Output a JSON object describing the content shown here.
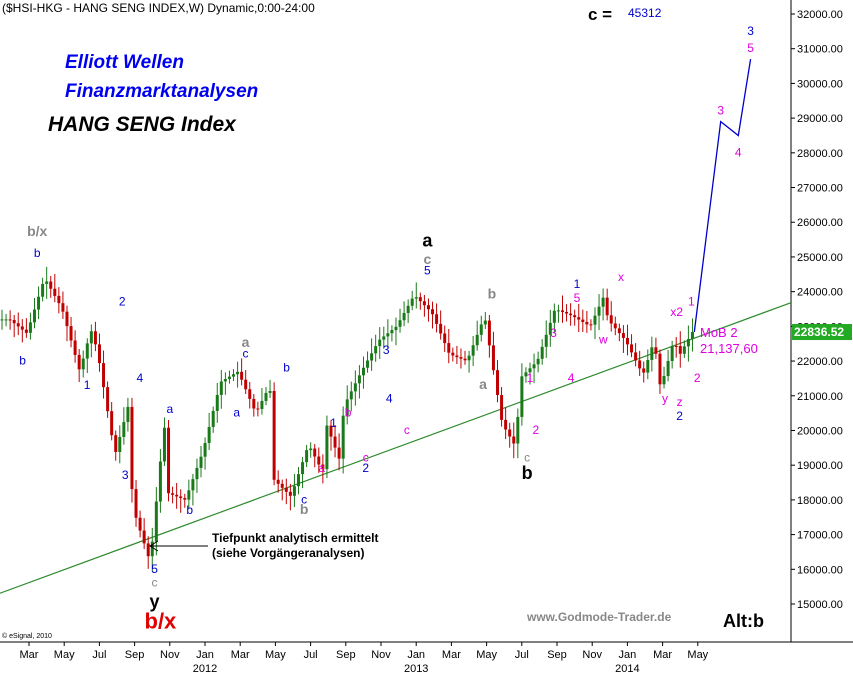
{
  "header": {
    "symbol_line": "($HSI-HKG - HANG SENG INDEX,W) Dynamic,0:00-24:00",
    "c_label": "c =",
    "c_value": "45312"
  },
  "titles": {
    "line1": "Elliott Wellen",
    "line2": "Finanzmarktanalysen",
    "line3": "HANG SENG Index"
  },
  "annotations": {
    "tiefpunkt_line1": "Tiefpunkt analytisch ermittelt",
    "tiefpunkt_line2": "(siehe Vorgängeranalysen)",
    "mob_label": "MoB 2",
    "mob_value": "21,137,60",
    "website": "www.Godmode-Trader.de",
    "alt": "Alt:b",
    "esignal": "© eSignal, 2010",
    "last_price": "22836.52"
  },
  "colors": {
    "up_candle": "#1a7a1a",
    "down_candle": "#c00000",
    "trendline": "#2e8b2e",
    "projection": "#0000cc",
    "blue": "#0000cc",
    "magenta": "#e000e0",
    "gray": "#888888",
    "red": "#e00000",
    "price_box": "#22aa22"
  },
  "chart_data": {
    "type": "candlestick",
    "ylim": [
      14400,
      32400
    ],
    "y_ticks": [
      15000,
      16000,
      17000,
      18000,
      19000,
      20000,
      21000,
      22000,
      23000,
      24000,
      25000,
      26000,
      27000,
      28000,
      29000,
      30000,
      31000,
      32000
    ],
    "y_tick_labels": [
      "15000.00",
      "16000.00",
      "17000.00",
      "18000.00",
      "19000.00",
      "20000.00",
      "21000.00",
      "22000.00",
      "23000.00",
      "24000.00",
      "25000.00",
      "26000.00",
      "27000.00",
      "28000.00",
      "29000.00",
      "30000.00",
      "31000.00",
      "32000.00"
    ],
    "x_ticks": [
      {
        "month": "2011-03",
        "label": "Mar",
        "year": ""
      },
      {
        "month": "2011-05",
        "label": "May",
        "year": ""
      },
      {
        "month": "2011-07",
        "label": "Jul",
        "year": ""
      },
      {
        "month": "2011-09",
        "label": "Sep",
        "year": ""
      },
      {
        "month": "2011-11",
        "label": "Nov",
        "year": ""
      },
      {
        "month": "2012-01",
        "label": "Jan",
        "year": "2012"
      },
      {
        "month": "2012-03",
        "label": "Mar",
        "year": ""
      },
      {
        "month": "2012-05",
        "label": "May",
        "year": ""
      },
      {
        "month": "2012-07",
        "label": "Jul",
        "year": ""
      },
      {
        "month": "2012-09",
        "label": "Sep",
        "year": ""
      },
      {
        "month": "2012-11",
        "label": "Nov",
        "year": ""
      },
      {
        "month": "2013-01",
        "label": "Jan",
        "year": "2013"
      },
      {
        "month": "2013-03",
        "label": "Mar",
        "year": ""
      },
      {
        "month": "2013-05",
        "label": "May",
        "year": ""
      },
      {
        "month": "2013-07",
        "label": "Jul",
        "year": ""
      },
      {
        "month": "2013-09",
        "label": "Sep",
        "year": ""
      },
      {
        "month": "2013-11",
        "label": "Nov",
        "year": ""
      },
      {
        "month": "2014-01",
        "label": "Jan",
        "year": "2014"
      },
      {
        "month": "2014-03",
        "label": "Mar",
        "year": ""
      },
      {
        "month": "2014-05",
        "label": "May",
        "year": ""
      }
    ],
    "swing_path": [
      [
        "2011-02",
        23200
      ],
      [
        "2011-03",
        22800
      ],
      [
        "2011-04",
        24400
      ],
      [
        "2011-05",
        23500
      ],
      [
        "2011-06",
        21700
      ],
      [
        "2011-06-20",
        22900
      ],
      [
        "2011-07",
        22300
      ],
      [
        "2011-08",
        19300
      ],
      [
        "2011-08-25",
        20800
      ],
      [
        "2011-09",
        17800
      ],
      [
        "2011-10-01",
        16200
      ],
      [
        "2011-10-25",
        20200
      ],
      [
        "2011-11",
        18200
      ],
      [
        "2011-12",
        18000
      ],
      [
        "2012-01",
        19400
      ],
      [
        "2012-02",
        21400
      ],
      [
        "2012-03",
        21700
      ],
      [
        "2012-04",
        20500
      ],
      [
        "2012-04-25",
        21300
      ],
      [
        "2012-05",
        18600
      ],
      [
        "2012-06",
        18100
      ],
      [
        "2012-07",
        19600
      ],
      [
        "2012-07-25",
        18800
      ],
      [
        "2012-08",
        20200
      ],
      [
        "2012-08-25",
        19100
      ],
      [
        "2012-09",
        20700
      ],
      [
        "2012-10",
        21700
      ],
      [
        "2012-11",
        22600
      ],
      [
        "2012-12",
        23000
      ],
      [
        "2013-01",
        23900
      ],
      [
        "2013-02",
        23400
      ],
      [
        "2013-03",
        22200
      ],
      [
        "2013-04",
        22000
      ],
      [
        "2013-05",
        23300
      ],
      [
        "2013-06",
        20200
      ],
      [
        "2013-06-25",
        19500
      ],
      [
        "2013-07",
        21500
      ],
      [
        "2013-08",
        22000
      ],
      [
        "2013-09",
        23500
      ],
      [
        "2013-10",
        23300
      ],
      [
        "2013-11",
        23000
      ],
      [
        "2013-11-25",
        23900
      ],
      [
        "2013-12",
        23200
      ],
      [
        "2014-01",
        22600
      ],
      [
        "2014-02",
        21600
      ],
      [
        "2014-02-20",
        22600
      ],
      [
        "2014-03",
        21200
      ],
      [
        "2014-03-25",
        22700
      ],
      [
        "2014-04",
        22100
      ],
      [
        "2014-04-25",
        22836
      ]
    ],
    "trendline": [
      [
        "2010-09",
        14500
      ],
      [
        "2014-12",
        24000
      ]
    ],
    "projection": [
      [
        "2014-04-25",
        22836
      ],
      [
        "2014-06-10",
        28900
      ],
      [
        "2014-07-10",
        28500
      ],
      [
        "2014-08-01",
        30700
      ]
    ],
    "last_price": 22836.52
  },
  "wave_labels": [
    {
      "text": "b/x",
      "month": "2011-03-15",
      "price": 25600,
      "color": "gray",
      "size": 14
    },
    {
      "text": "b",
      "month": "2011-03-15",
      "price": 25000,
      "color": "blue",
      "size": 12
    },
    {
      "text": "b",
      "month": "2011-02-20",
      "price": 21900,
      "color": "blue",
      "size": 12
    },
    {
      "text": "2",
      "month": "2011-08-10",
      "price": 23600,
      "color": "blue",
      "size": 12
    },
    {
      "text": "1",
      "month": "2011-06-10",
      "price": 21200,
      "color": "blue",
      "size": 12
    },
    {
      "text": "4",
      "month": "2011-09-10",
      "price": 21400,
      "color": "blue",
      "size": 12
    },
    {
      "text": "3",
      "month": "2011-08-15",
      "price": 18600,
      "color": "blue",
      "size": 12
    },
    {
      "text": "a",
      "month": "2011-11-01",
      "price": 20500,
      "color": "blue",
      "size": 12
    },
    {
      "text": "b",
      "month": "2011-12-05",
      "price": 17600,
      "color": "blue",
      "size": 12
    },
    {
      "text": "5",
      "month": "2011-10-05",
      "price": 15900,
      "color": "blue",
      "size": 12
    },
    {
      "text": "c",
      "month": "2011-10-05",
      "price": 15500,
      "color": "gray",
      "size": 12
    },
    {
      "text": "y",
      "month": "2011-10-05",
      "price": 14900,
      "color": "black",
      "size": 18
    },
    {
      "text": "b/x",
      "month": "2011-10-15",
      "price": 14300,
      "color": "red",
      "size": 22
    },
    {
      "text": "a",
      "month": "2012-03-10",
      "price": 22400,
      "color": "gray",
      "size": 14
    },
    {
      "text": "c",
      "month": "2012-03-10",
      "price": 22100,
      "color": "blue",
      "size": 12
    },
    {
      "text": "a",
      "month": "2012-02-25",
      "price": 20400,
      "color": "blue",
      "size": 12
    },
    {
      "text": "b",
      "month": "2012-05-20",
      "price": 21700,
      "color": "blue",
      "size": 12
    },
    {
      "text": "c",
      "month": "2012-06-20",
      "price": 17900,
      "color": "blue",
      "size": 12
    },
    {
      "text": "b",
      "month": "2012-06-20",
      "price": 17600,
      "color": "gray",
      "size": 14
    },
    {
      "text": "a",
      "month": "2012-07-20",
      "price": 18800,
      "color": "magenta",
      "size": 12
    },
    {
      "text": "1",
      "month": "2012-08-10",
      "price": 20100,
      "color": "blue",
      "size": 12
    },
    {
      "text": "b",
      "month": "2012-09-05",
      "price": 20400,
      "color": "magenta",
      "size": 12
    },
    {
      "text": "c",
      "month": "2012-10-05",
      "price": 19100,
      "color": "magenta",
      "size": 12
    },
    {
      "text": "2",
      "month": "2012-10-05",
      "price": 18800,
      "color": "blue",
      "size": 12
    },
    {
      "text": "3",
      "month": "2012-11-10",
      "price": 22200,
      "color": "blue",
      "size": 12
    },
    {
      "text": "4",
      "month": "2012-11-15",
      "price": 20800,
      "color": "blue",
      "size": 12
    },
    {
      "text": "c",
      "month": "2012-12-15",
      "price": 19900,
      "color": "magenta",
      "size": 12
    },
    {
      "text": "a",
      "month": "2013-01-20",
      "price": 25300,
      "color": "black",
      "size": 18
    },
    {
      "text": "c",
      "month": "2013-01-20",
      "price": 24800,
      "color": "gray",
      "size": 14
    },
    {
      "text": "5",
      "month": "2013-01-20",
      "price": 24500,
      "color": "blue",
      "size": 12
    },
    {
      "text": "b",
      "month": "2013-05-10",
      "price": 23800,
      "color": "gray",
      "size": 14
    },
    {
      "text": "a",
      "month": "2013-04-25",
      "price": 21200,
      "color": "gray",
      "size": 14
    },
    {
      "text": "1",
      "month": "2013-07-15",
      "price": 21400,
      "color": "magenta",
      "size": 12
    },
    {
      "text": "2",
      "month": "2013-07-25",
      "price": 19900,
      "color": "magenta",
      "size": 12
    },
    {
      "text": "c",
      "month": "2013-07-10",
      "price": 19100,
      "color": "gray",
      "size": 12
    },
    {
      "text": "b",
      "month": "2013-07-10",
      "price": 18600,
      "color": "black",
      "size": 18
    },
    {
      "text": "3",
      "month": "2013-08-25",
      "price": 22700,
      "color": "magenta",
      "size": 12
    },
    {
      "text": "4",
      "month": "2013-09-25",
      "price": 21400,
      "color": "magenta",
      "size": 12
    },
    {
      "text": "1",
      "month": "2013-10-05",
      "price": 24100,
      "color": "blue",
      "size": 12
    },
    {
      "text": "5",
      "month": "2013-10-05",
      "price": 23700,
      "color": "magenta",
      "size": 12
    },
    {
      "text": "w",
      "month": "2013-11-20",
      "price": 22500,
      "color": "magenta",
      "size": 12
    },
    {
      "text": "x",
      "month": "2013-12-20",
      "price": 24300,
      "color": "magenta",
      "size": 12
    },
    {
      "text": "x2",
      "month": "2014-03-25",
      "price": 23300,
      "color": "magenta",
      "size": 12
    },
    {
      "text": "y",
      "month": "2014-03-05",
      "price": 20800,
      "color": "magenta",
      "size": 12
    },
    {
      "text": "z",
      "month": "2014-03-30",
      "price": 20700,
      "color": "magenta",
      "size": 12
    },
    {
      "text": "2",
      "month": "2014-03-30",
      "price": 20300,
      "color": "blue",
      "size": 12
    },
    {
      "text": "1",
      "month": "2014-04-20",
      "price": 23600,
      "color": "magenta",
      "size": 12
    },
    {
      "text": "2",
      "month": "2014-04-30",
      "price": 21400,
      "color": "magenta",
      "size": 12
    },
    {
      "text": "3",
      "month": "2014-06-10",
      "price": 29100,
      "color": "magenta",
      "size": 12
    },
    {
      "text": "4",
      "month": "2014-07-10",
      "price": 27900,
      "color": "magenta",
      "size": 12
    },
    {
      "text": "3",
      "month": "2014-08-01",
      "price": 31400,
      "color": "blue",
      "size": 12
    },
    {
      "text": "5",
      "month": "2014-08-01",
      "price": 30900,
      "color": "magenta",
      "size": 12
    }
  ]
}
